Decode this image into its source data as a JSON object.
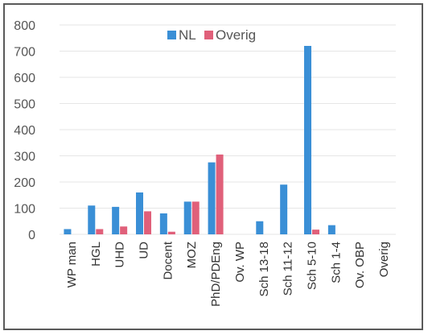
{
  "chart_data": {
    "type": "bar",
    "categories": [
      "WP man",
      "HGL",
      "UHD",
      "UD",
      "Docent",
      "MOZ",
      "PhD/PDEng",
      "Ov. WP",
      "Sch 13-18",
      "Sch 11-12",
      "Sch 5-10",
      "Sch 1-4",
      "Ov. OBP",
      "Overig"
    ],
    "series": [
      {
        "name": "NL",
        "color": "#3a8fd6",
        "values": [
          20,
          110,
          105,
          160,
          80,
          125,
          275,
          0,
          50,
          190,
          720,
          35,
          0,
          0
        ]
      },
      {
        "name": "Overig",
        "color": "#e0607a",
        "values": [
          0,
          20,
          30,
          88,
          10,
          125,
          305,
          0,
          0,
          0,
          18,
          0,
          0,
          0
        ]
      }
    ],
    "ylim": [
      0,
      800
    ],
    "yticks": [
      0,
      100,
      200,
      300,
      400,
      500,
      600,
      700,
      800
    ],
    "grid": true,
    "legend_position": "top-center"
  }
}
